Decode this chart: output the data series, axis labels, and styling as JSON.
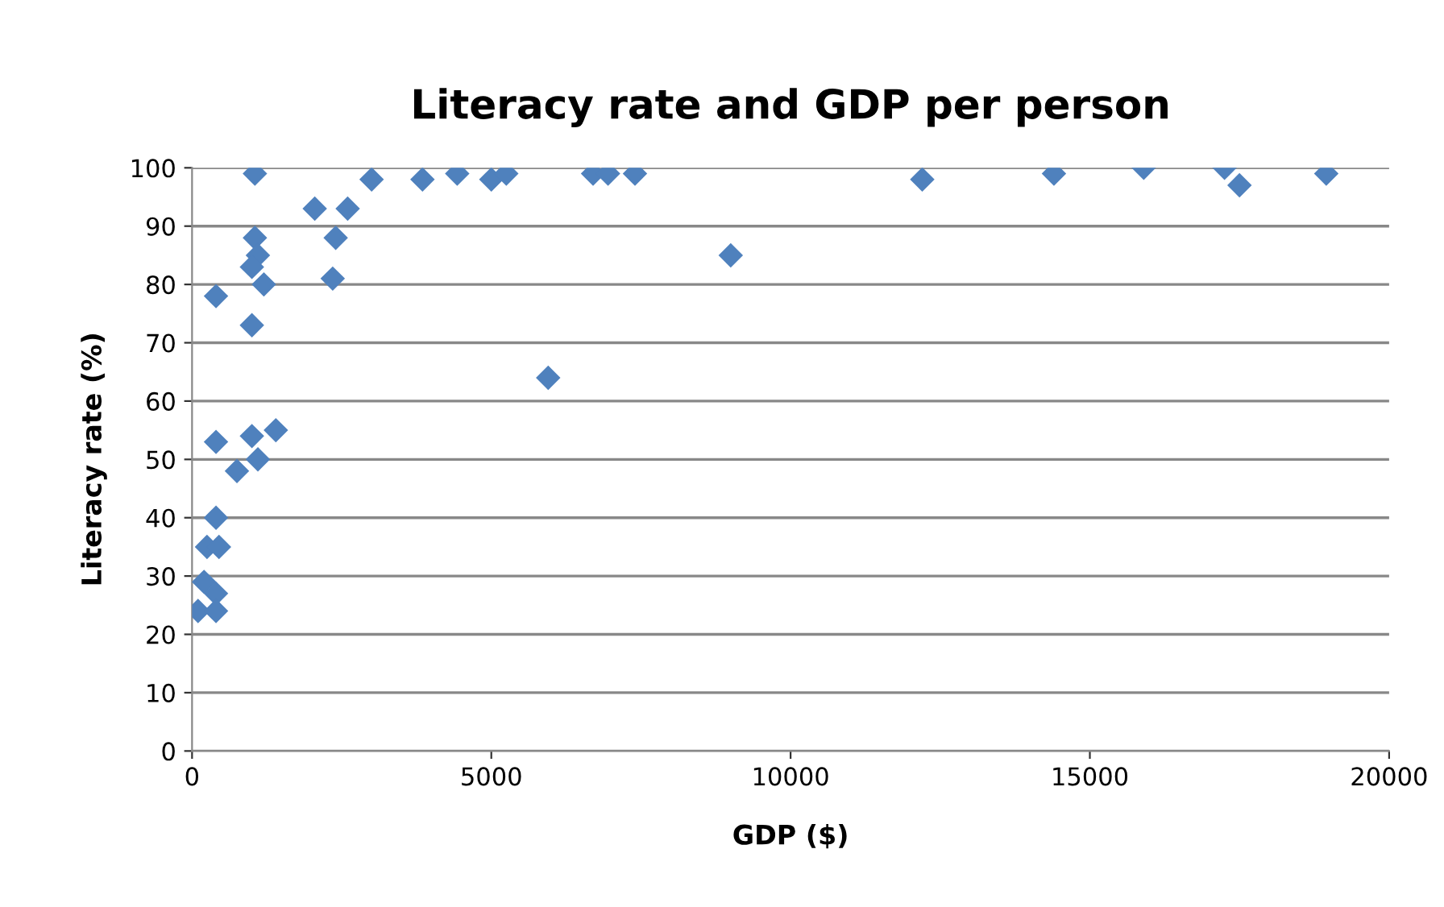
{
  "chart_data": {
    "type": "scatter",
    "title": "Literacy rate and GDP per person",
    "xlabel": "GDP ($)",
    "ylabel": "Literacy rate (%)",
    "x": [
      1050,
      400,
      1050,
      1100,
      1000,
      1200,
      1000,
      2050,
      2600,
      2400,
      2350,
      3000,
      3850,
      4430,
      5000,
      5250,
      5950,
      6700,
      6950,
      7400,
      9000,
      12200,
      14400,
      15900,
      17250,
      17500,
      18950,
      400,
      1000,
      1400,
      1100,
      750,
      400,
      250,
      450,
      200,
      400,
      100,
      400
    ],
    "values": [
      99,
      78,
      88,
      85,
      83,
      80,
      73,
      93,
      93,
      88,
      81,
      98,
      98,
      99,
      98,
      99,
      64,
      99,
      99,
      99,
      85,
      98,
      99,
      100,
      100,
      97,
      99,
      53,
      54,
      55,
      50,
      48,
      40,
      35,
      35,
      29,
      27,
      24,
      24
    ],
    "color": "#4f81bd",
    "marker": "diamond",
    "xlim": [
      0,
      20000
    ],
    "xticks": [
      0,
      5000,
      10000,
      15000,
      20000
    ],
    "ylim": [
      0,
      100
    ],
    "yticks": [
      0,
      10,
      20,
      30,
      40,
      50,
      60,
      70,
      80,
      90,
      100
    ],
    "grid": "y"
  }
}
